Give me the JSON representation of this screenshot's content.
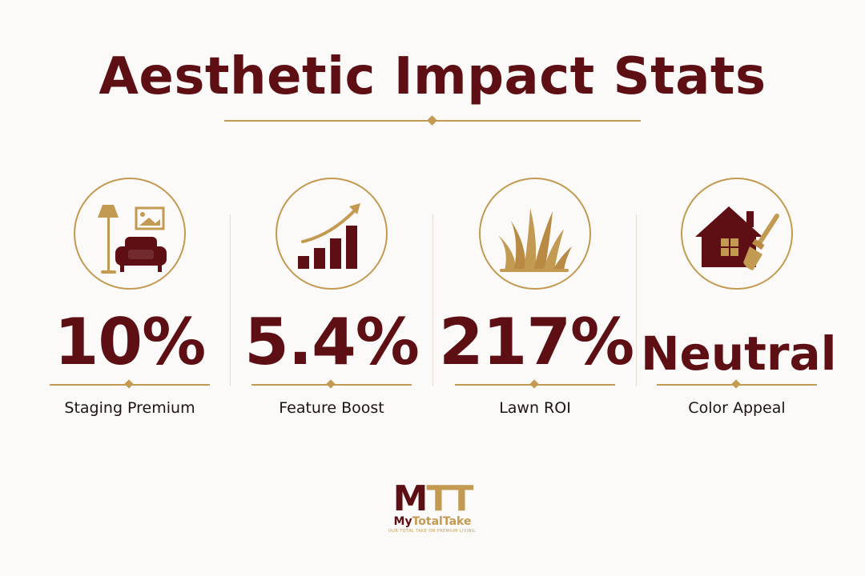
{
  "title": "Aesthetic Impact Stats",
  "colors": {
    "maroon": "#5e0f14",
    "gold": "#c39a52",
    "background": "#fbfaf8"
  },
  "stats": [
    {
      "value": "10%",
      "label": "Staging Premium",
      "icon": "staging-furniture-icon"
    },
    {
      "value": "5.4%",
      "label": "Feature Boost",
      "icon": "growth-bar-chart-icon"
    },
    {
      "value": "217%",
      "label": "Lawn ROI",
      "icon": "lawn-grass-icon"
    },
    {
      "value": "Neutral",
      "label": "Color Appeal",
      "icon": "house-paintbrush-icon"
    }
  ],
  "logo": {
    "mark_m": "M",
    "mark_tt": "TT",
    "name_part1": "My",
    "name_part2": "TotalTake",
    "tagline": "OUR TOTAL TAKE ON PREMIUM LIVING."
  }
}
